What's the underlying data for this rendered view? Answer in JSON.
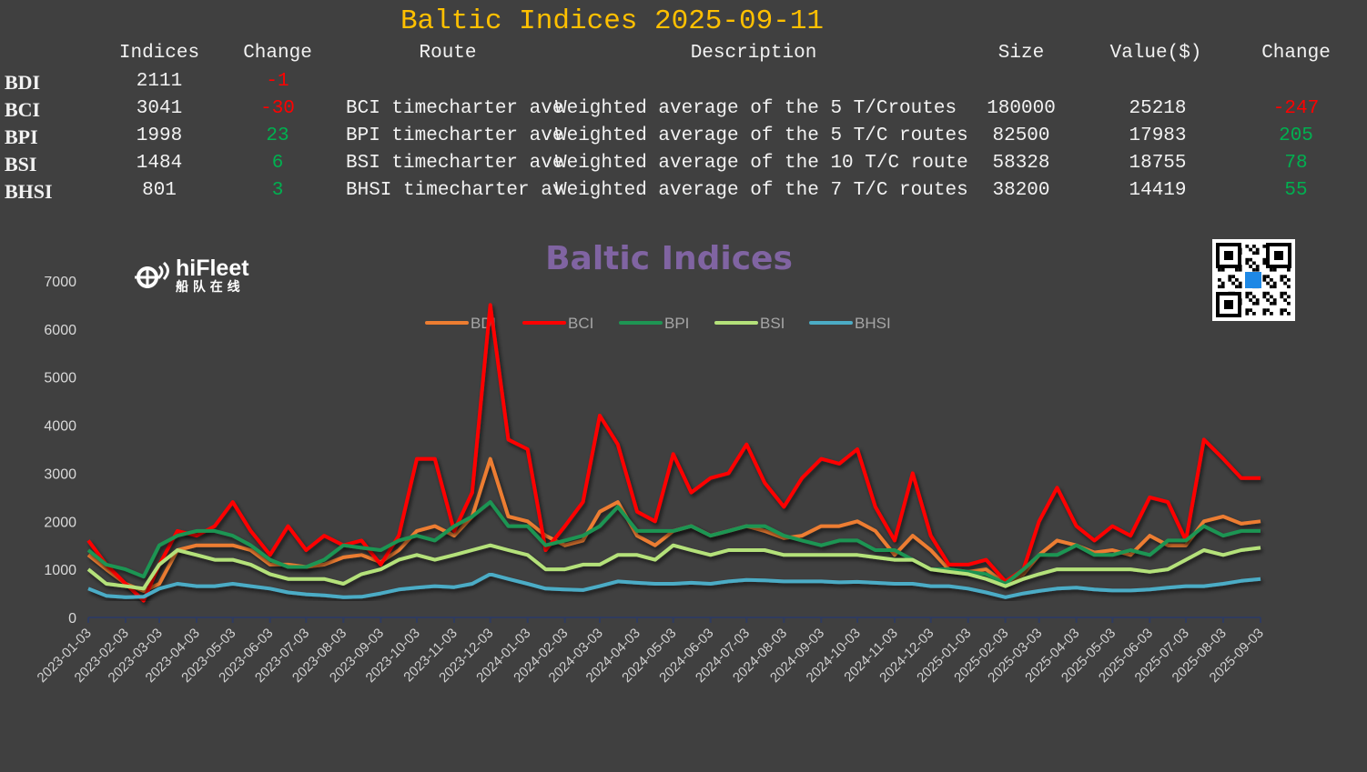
{
  "header": {
    "title": "Baltic Indices 2025-09-11"
  },
  "table": {
    "columns": [
      "Indices",
      "Change",
      "Route",
      "Description",
      "Size",
      "Value($)",
      "Change"
    ],
    "rows": [
      {
        "name": "BDI",
        "index": "2111",
        "change": "-1",
        "route": "",
        "description": "",
        "size": "",
        "value": "",
        "value_change": ""
      },
      {
        "name": "BCI",
        "index": "3041",
        "change": "-30",
        "route": "BCI timecharter ave",
        "description": "Weighted average of the 5 T/Croutes",
        "size": "180000",
        "value": "25218",
        "value_change": "-247"
      },
      {
        "name": "BPI",
        "index": "1998",
        "change": "23",
        "route": "BPI timecharter ave",
        "description": "Weighted average of the 5 T/C routes",
        "size": "82500",
        "value": "17983",
        "value_change": "205"
      },
      {
        "name": "BSI",
        "index": "1484",
        "change": "6",
        "route": "BSI timecharter ave",
        "description": "Weighted average of the 10 T/C route",
        "size": "58328",
        "value": "18755",
        "value_change": "78"
      },
      {
        "name": "BHSI",
        "index": "801",
        "change": "3",
        "route": "BHSI timecharter av",
        "description": "Weighted average of the 7 T/C routes",
        "size": "38200",
        "value": "14419",
        "value_change": "55"
      }
    ],
    "colors": {
      "negative": "#FF0000",
      "positive": "#00B050"
    }
  },
  "logo": {
    "text": "hiFleet",
    "subtext": "船 队 在 线"
  },
  "chart_data": {
    "type": "line",
    "title": "Baltic Indices",
    "title_color": "#8064A2",
    "legend_position": "top",
    "grid": false,
    "ylim": [
      0,
      7000
    ],
    "yticks": [
      0,
      1000,
      2000,
      3000,
      4000,
      5000,
      6000,
      7000
    ],
    "xticks": [
      "2023-01-03",
      "2023-02-03",
      "2023-03-03",
      "2023-04-03",
      "2023-05-03",
      "2023-06-03",
      "2023-07-03",
      "2023-08-03",
      "2023-09-03",
      "2023-10-03",
      "2023-11-03",
      "2023-12-03",
      "2024-01-03",
      "2024-02-03",
      "2024-03-03",
      "2024-04-03",
      "2024-05-03",
      "2024-06-03",
      "2024-07-03",
      "2024-08-03",
      "2024-09-03",
      "2024-10-03",
      "2024-11-03",
      "2024-12-03",
      "2025-01-03",
      "2025-02-03",
      "2025-03-03",
      "2025-04-03",
      "2025-05-03",
      "2025-06-03",
      "2025-07-03",
      "2025-08-03",
      "2025-09-03"
    ],
    "x": [
      "2023-01-03",
      "2023-01-18",
      "2023-02-03",
      "2023-02-18",
      "2023-03-03",
      "2023-03-18",
      "2023-04-03",
      "2023-04-18",
      "2023-05-03",
      "2023-05-18",
      "2023-06-03",
      "2023-06-18",
      "2023-07-03",
      "2023-07-18",
      "2023-08-03",
      "2023-08-18",
      "2023-09-03",
      "2023-09-18",
      "2023-10-03",
      "2023-10-18",
      "2023-11-03",
      "2023-11-18",
      "2023-12-03",
      "2023-12-18",
      "2024-01-03",
      "2024-01-18",
      "2024-02-03",
      "2024-02-18",
      "2024-03-03",
      "2024-03-18",
      "2024-04-03",
      "2024-04-18",
      "2024-05-03",
      "2024-05-18",
      "2024-06-03",
      "2024-06-18",
      "2024-07-03",
      "2024-07-18",
      "2024-08-03",
      "2024-08-18",
      "2024-09-03",
      "2024-09-18",
      "2024-10-03",
      "2024-10-18",
      "2024-11-03",
      "2024-11-18",
      "2024-12-03",
      "2024-12-18",
      "2025-01-03",
      "2025-01-18",
      "2025-02-03",
      "2025-02-18",
      "2025-03-03",
      "2025-03-18",
      "2025-04-03",
      "2025-04-18",
      "2025-05-03",
      "2025-05-18",
      "2025-06-03",
      "2025-06-18",
      "2025-07-03",
      "2025-07-18",
      "2025-08-03",
      "2025-08-18",
      "2025-09-03"
    ],
    "series": [
      {
        "name": "BDI",
        "color": "#ED7D31",
        "values": [
          1300,
          1000,
          700,
          550,
          700,
          1400,
          1500,
          1500,
          1500,
          1400,
          1100,
          1100,
          1050,
          1100,
          1250,
          1300,
          1150,
          1400,
          1800,
          1900,
          1700,
          2100,
          3300,
          2100,
          2000,
          1700,
          1500,
          1600,
          2200,
          2400,
          1700,
          1500,
          1800,
          1900,
          1700,
          1800,
          1900,
          1800,
          1650,
          1700,
          1900,
          1900,
          2000,
          1800,
          1300,
          1700,
          1400,
          1000,
          950,
          1000,
          700,
          900,
          1300,
          1600,
          1500,
          1350,
          1400,
          1300,
          1700,
          1500,
          1500,
          2000,
          2100,
          1950,
          2000
        ]
      },
      {
        "name": "BCI",
        "color": "#FF0000",
        "values": [
          1600,
          1100,
          700,
          350,
          1100,
          1800,
          1700,
          1900,
          2400,
          1800,
          1300,
          1900,
          1400,
          1700,
          1500,
          1600,
          1100,
          1700,
          3300,
          3300,
          1800,
          2600,
          6500,
          3700,
          3500,
          1400,
          1900,
          2400,
          4200,
          3600,
          2200,
          2000,
          3400,
          2600,
          2900,
          3000,
          3600,
          2800,
          2300,
          2900,
          3300,
          3200,
          3500,
          2300,
          1600,
          3000,
          1700,
          1100,
          1100,
          1200,
          750,
          1000,
          2000,
          2700,
          1900,
          1600,
          1900,
          1700,
          2500,
          2400,
          1600,
          3700,
          3300,
          2900,
          2900
        ]
      },
      {
        "name": "BPI",
        "color": "#1E9553",
        "values": [
          1400,
          1100,
          1000,
          850,
          1500,
          1700,
          1800,
          1800,
          1700,
          1500,
          1200,
          1050,
          1050,
          1200,
          1500,
          1450,
          1400,
          1600,
          1700,
          1600,
          1900,
          2100,
          2400,
          1900,
          1900,
          1500,
          1600,
          1700,
          1900,
          2300,
          1800,
          1800,
          1800,
          1900,
          1700,
          1800,
          1900,
          1900,
          1700,
          1600,
          1500,
          1600,
          1600,
          1400,
          1400,
          1200,
          1000,
          1000,
          950,
          900,
          700,
          1000,
          1300,
          1300,
          1500,
          1300,
          1300,
          1400,
          1300,
          1600,
          1600,
          1900,
          1700,
          1800,
          1800
        ]
      },
      {
        "name": "BSI",
        "color": "#B4E17A",
        "values": [
          1000,
          700,
          650,
          600,
          1100,
          1400,
          1300,
          1200,
          1200,
          1100,
          900,
          800,
          800,
          800,
          700,
          900,
          1000,
          1200,
          1300,
          1200,
          1300,
          1400,
          1500,
          1400,
          1300,
          1000,
          1000,
          1100,
          1100,
          1300,
          1300,
          1200,
          1500,
          1400,
          1300,
          1400,
          1400,
          1400,
          1300,
          1300,
          1300,
          1300,
          1300,
          1250,
          1200,
          1200,
          1000,
          950,
          900,
          800,
          650,
          800,
          900,
          1000,
          1000,
          1000,
          1000,
          1000,
          950,
          1000,
          1200,
          1400,
          1300,
          1400,
          1450
        ]
      },
      {
        "name": "BHSI",
        "color": "#4BACC6",
        "values": [
          600,
          450,
          420,
          430,
          600,
          700,
          650,
          650,
          700,
          650,
          600,
          520,
          480,
          460,
          420,
          430,
          500,
          580,
          620,
          650,
          630,
          700,
          900,
          800,
          700,
          600,
          580,
          570,
          650,
          750,
          720,
          700,
          700,
          720,
          700,
          750,
          780,
          770,
          750,
          750,
          750,
          730,
          740,
          720,
          700,
          700,
          650,
          650,
          600,
          520,
          420,
          500,
          550,
          600,
          620,
          580,
          560,
          560,
          580,
          620,
          650,
          650,
          700,
          760,
          800
        ]
      }
    ]
  }
}
